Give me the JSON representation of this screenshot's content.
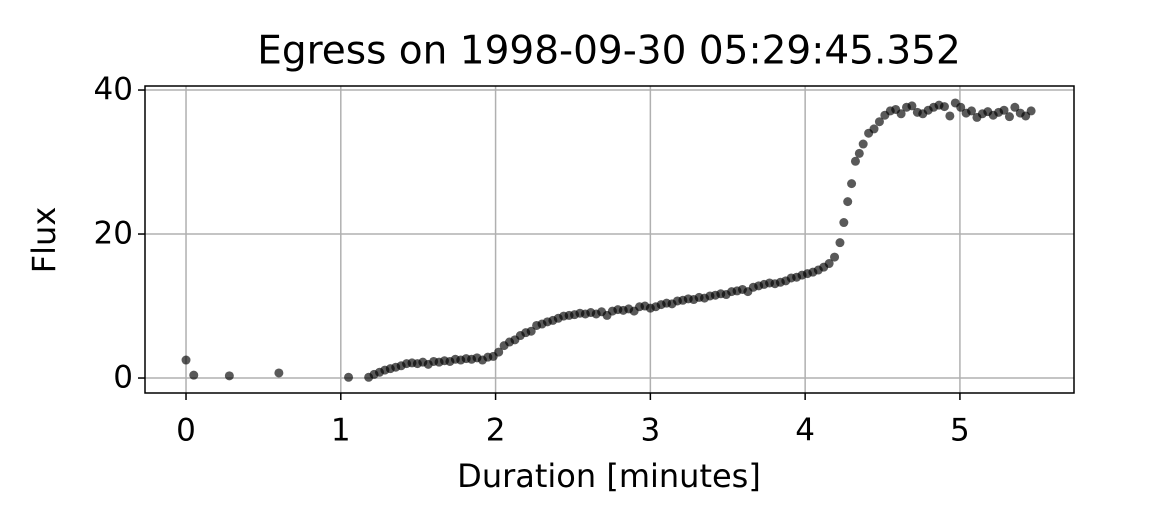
{
  "chart_data": {
    "type": "scatter",
    "title": "Egress on 1998-09-30 05:29:45.352",
    "x_label": "Duration [minutes]",
    "y_label": "Flux",
    "xlim": [
      -0.265,
      5.737
    ],
    "ylim": [
      -2.08,
      40.56
    ],
    "xticks": [
      0,
      1,
      2,
      3,
      4,
      5
    ],
    "yticks": [
      0,
      20,
      40
    ],
    "grid": true,
    "series": [
      {
        "color": "#000000",
        "x": [
          0,
          0.05,
          0.28,
          0.6,
          1.05,
          1.18,
          1.215,
          1.25,
          1.285,
          1.32,
          1.355,
          1.39,
          1.425,
          1.46,
          1.495,
          1.53,
          1.565,
          1.6,
          1.635,
          1.67,
          1.705,
          1.74,
          1.775,
          1.81,
          1.845,
          1.88,
          1.915,
          1.95,
          1.985,
          2.02,
          2.055,
          2.09,
          2.125,
          2.16,
          2.195,
          2.23,
          2.265,
          2.3,
          2.335,
          2.37,
          2.405,
          2.44,
          2.475,
          2.51,
          2.545,
          2.58,
          2.615,
          2.65,
          2.685,
          2.72,
          2.755,
          2.79,
          2.825,
          2.86,
          2.895,
          2.93,
          2.965,
          3.0,
          3.035,
          3.07,
          3.105,
          3.14,
          3.175,
          3.21,
          3.245,
          3.28,
          3.315,
          3.35,
          3.385,
          3.42,
          3.455,
          3.49,
          3.525,
          3.56,
          3.595,
          3.63,
          3.665,
          3.7,
          3.735,
          3.77,
          3.805,
          3.84,
          3.875,
          3.91,
          3.945,
          3.98,
          4.015,
          4.05,
          4.085,
          4.12,
          4.155,
          4.19,
          4.225,
          4.25,
          4.275,
          4.3,
          4.325,
          4.35,
          4.375,
          4.41,
          4.445,
          4.48,
          4.515,
          4.55,
          4.585,
          4.62,
          4.655,
          4.69,
          4.725,
          4.76,
          4.795,
          4.83,
          4.865,
          4.9,
          4.935,
          4.97,
          5.005,
          5.04,
          5.075,
          5.11,
          5.145,
          5.18,
          5.215,
          5.25,
          5.285,
          5.32,
          5.355,
          5.39,
          5.425,
          5.46
        ],
        "values": [
          2.5,
          0.4,
          0.3,
          0.7,
          0.1,
          0.1,
          0.5,
          0.8,
          1.1,
          1.3,
          1.5,
          1.7,
          2.0,
          2.1,
          2.0,
          2.2,
          1.9,
          2.3,
          2.2,
          2.4,
          2.3,
          2.6,
          2.5,
          2.7,
          2.6,
          2.8,
          2.5,
          2.9,
          3.0,
          3.6,
          4.5,
          5.0,
          5.3,
          5.9,
          6.3,
          6.5,
          7.3,
          7.5,
          7.8,
          8.0,
          8.3,
          8.6,
          8.7,
          8.8,
          9.0,
          8.9,
          9.1,
          8.9,
          9.2,
          8.7,
          9.3,
          9.5,
          9.4,
          9.6,
          9.3,
          9.9,
          10.0,
          9.7,
          9.9,
          10.2,
          10.4,
          10.3,
          10.7,
          10.8,
          11.0,
          10.9,
          11.2,
          11.1,
          11.4,
          11.5,
          11.7,
          11.6,
          12.0,
          12.1,
          12.3,
          12.0,
          12.6,
          12.8,
          13.0,
          13.2,
          13.1,
          13.3,
          13.5,
          13.9,
          14.0,
          14.3,
          14.5,
          14.7,
          15.0,
          15.4,
          15.9,
          16.8,
          18.8,
          21.6,
          24.5,
          27.0,
          30.1,
          31.2,
          32.5,
          34.0,
          34.6,
          35.6,
          36.5,
          37.1,
          37.3,
          36.7,
          37.6,
          37.8,
          36.9,
          36.7,
          37.2,
          37.6,
          37.9,
          37.7,
          36.4,
          38.2,
          37.6,
          36.8,
          37.1,
          36.2,
          36.7,
          37.0,
          36.5,
          36.9,
          37.2,
          36.3,
          37.6,
          36.8,
          36.4,
          37.1
        ]
      }
    ]
  }
}
